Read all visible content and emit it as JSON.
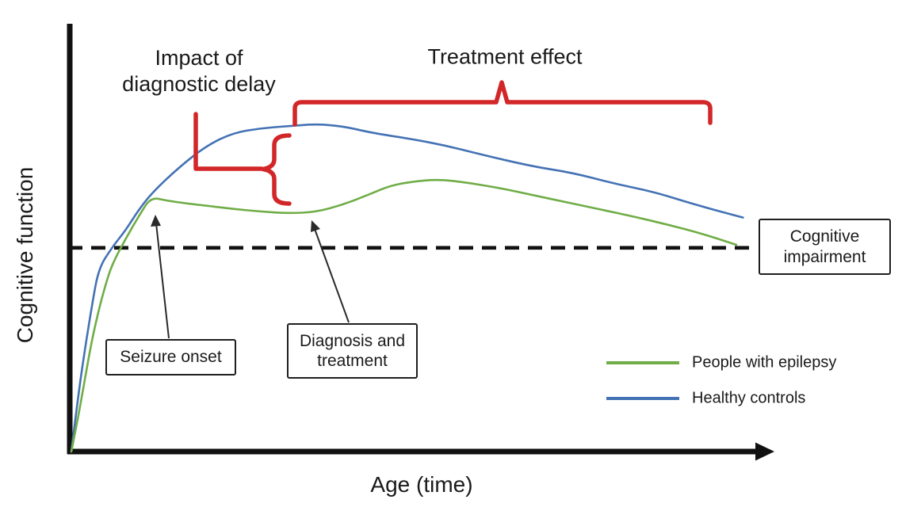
{
  "figure": {
    "y_axis_label": "Cognitive function",
    "x_axis_label": "Age (time)",
    "annotations": {
      "diagnostic_delay_title": "Impact of\ndiagnostic delay",
      "treatment_effect_title": "Treatment effect",
      "seizure_onset": "Seizure onset",
      "diagnosis_treatment": "Diagnosis and\ntreatment",
      "cognitive_impairment": "Cognitive\nimpairment"
    },
    "legend": [
      {
        "label": "People with epilepsy",
        "color": "#70ad47"
      },
      {
        "label": "Healthy controls",
        "color": "#4472b4"
      }
    ],
    "colors": {
      "epilepsy_green": "#70ad47",
      "controls_blue": "#4472b4",
      "annotation_red": "#d22628",
      "ink": "#1a1a1a"
    }
  },
  "chart_data": {
    "type": "line",
    "title": "",
    "xlabel": "Age (time)",
    "ylabel": "Cognitive function",
    "axis_tick_labels": "none (conceptual schematic; x and y are relative 0-100 estimates)",
    "xlim": [
      0,
      100
    ],
    "ylim": [
      0,
      100
    ],
    "grid": false,
    "legend_position": "lower right",
    "series": [
      {
        "name": "Healthy controls",
        "color": "#4472b4",
        "x": [
          0,
          1,
          2,
          3,
          4,
          6,
          8,
          10,
          12,
          16,
          20,
          24,
          28,
          32,
          36,
          40,
          44,
          50,
          55,
          60,
          68,
          74,
          80,
          86,
          92,
          99
        ],
        "y": [
          0,
          13,
          24,
          34,
          43,
          48,
          52,
          57,
          61,
          67,
          72,
          75,
          76,
          76.5,
          77,
          76.5,
          75,
          73.5,
          72,
          70,
          67,
          65.5,
          63,
          61,
          58,
          55
        ]
      },
      {
        "name": "People with epilepsy",
        "color": "#70ad47",
        "x": [
          0,
          1,
          2,
          3,
          4,
          5,
          6,
          8,
          10,
          11.7,
          14,
          17,
          20,
          24,
          28,
          32,
          36,
          40,
          44,
          47,
          50,
          54,
          58,
          63,
          68,
          73,
          78,
          83,
          88,
          93,
          98
        ],
        "y": [
          0,
          8,
          17,
          26,
          33,
          39,
          44,
          50,
          55.5,
          59.8,
          59,
          58.3,
          57.8,
          57,
          56.4,
          56,
          56.3,
          58,
          60.5,
          62.5,
          63.4,
          64,
          63.3,
          62,
          60.3,
          58.6,
          56.9,
          55.2,
          53.3,
          51.2,
          48.6
        ]
      }
    ],
    "threshold_line": {
      "label": "Cognitive impairment",
      "y": 47.9,
      "style": "dashed"
    },
    "event_markers": [
      {
        "label": "Seizure onset",
        "series": "People with epilepsy",
        "x": 12,
        "y": 60
      },
      {
        "label": "Diagnosis and treatment",
        "series": "People with epilepsy",
        "x": 32,
        "y": 56
      }
    ],
    "range_annotations": [
      {
        "label": "Impact of diagnostic delay",
        "shape": "vertical-brace",
        "x": 30,
        "y_range": [
          56,
          77
        ]
      },
      {
        "label": "Treatment effect",
        "shape": "horizontal-bracket",
        "x_range": [
          33,
          94
        ]
      }
    ]
  }
}
